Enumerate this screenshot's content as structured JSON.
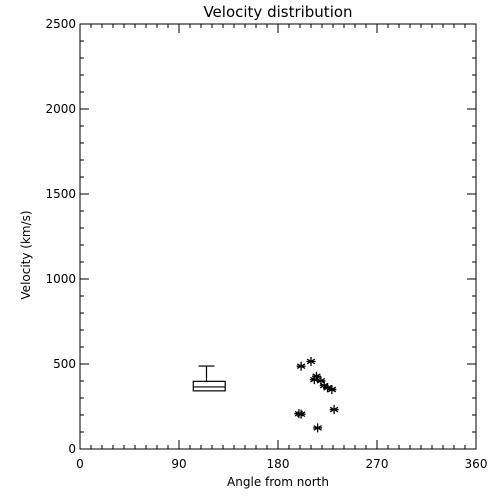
{
  "chart_data": {
    "type": "scatter",
    "title": "Velocity distribution",
    "xlabel": "Angle from north",
    "ylabel": "Velocity (km/s)",
    "xlim": [
      0,
      360
    ],
    "ylim": [
      0,
      2500
    ],
    "xticks": [
      0,
      90,
      180,
      270,
      360
    ],
    "yticks": [
      0,
      500,
      1000,
      1500,
      2000,
      2500
    ],
    "x_minor_step": 10,
    "y_minor_step": 100,
    "grid": false,
    "legend": "none",
    "box": {
      "x": 115,
      "x_extent": [
        103,
        132
      ],
      "lower_quartile": 342,
      "median": 365,
      "upper_quartile": 398,
      "whisker_high": 488
    },
    "points": [
      {
        "x": 201,
        "y": 487
      },
      {
        "x": 210,
        "y": 515
      },
      {
        "x": 213,
        "y": 408
      },
      {
        "x": 215,
        "y": 428
      },
      {
        "x": 219,
        "y": 401
      },
      {
        "x": 222,
        "y": 373
      },
      {
        "x": 225,
        "y": 360
      },
      {
        "x": 229,
        "y": 350
      },
      {
        "x": 231,
        "y": 232
      },
      {
        "x": 199,
        "y": 208
      },
      {
        "x": 201,
        "y": 205
      },
      {
        "x": 216,
        "y": 124
      }
    ]
  }
}
